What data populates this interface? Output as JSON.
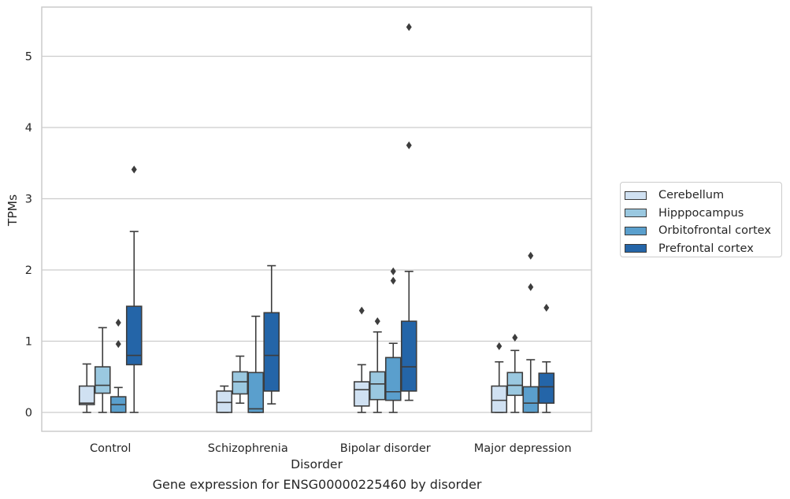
{
  "caption": "Gene expression for ENSG00000225460 by disorder",
  "chart_data": {
    "type": "box",
    "xlabel": "Disorder",
    "ylabel": "TPMs",
    "ylim": [
      -0.27,
      5.7
    ],
    "yticks": [
      0,
      1,
      2,
      3,
      4,
      5
    ],
    "grid": "horizontal",
    "legend_placement": "outside-right",
    "categories": [
      "Control",
      "Schizophrenia",
      "Bipolar disorder",
      "Major depression"
    ],
    "series": [
      {
        "name": "Cerebellum",
        "color": "#d0e1f2",
        "boxes": [
          {
            "whisker_low": 0.0,
            "q1": 0.11,
            "median": 0.13,
            "q3": 0.37,
            "whisker_high": 0.68,
            "outliers": []
          },
          {
            "whisker_low": 0.0,
            "q1": 0.0,
            "median": 0.14,
            "q3": 0.3,
            "whisker_high": 0.37,
            "outliers": []
          },
          {
            "whisker_low": 0.0,
            "q1": 0.09,
            "median": 0.32,
            "q3": 0.43,
            "whisker_high": 0.67,
            "outliers": [
              1.43
            ]
          },
          {
            "whisker_low": 0.0,
            "q1": 0.0,
            "median": 0.17,
            "q3": 0.37,
            "whisker_high": 0.71,
            "outliers": [
              0.93
            ]
          }
        ]
      },
      {
        "name": "Hipppocampus",
        "color": "#9ac8e0",
        "boxes": [
          {
            "whisker_low": 0.0,
            "q1": 0.27,
            "median": 0.38,
            "q3": 0.64,
            "whisker_high": 1.19,
            "outliers": []
          },
          {
            "whisker_low": 0.13,
            "q1": 0.26,
            "median": 0.43,
            "q3": 0.57,
            "whisker_high": 0.79,
            "outliers": []
          },
          {
            "whisker_low": 0.0,
            "q1": 0.18,
            "median": 0.4,
            "q3": 0.57,
            "whisker_high": 1.13,
            "outliers": [
              1.28
            ]
          },
          {
            "whisker_low": 0.0,
            "q1": 0.24,
            "median": 0.38,
            "q3": 0.56,
            "whisker_high": 0.87,
            "outliers": [
              1.05
            ]
          }
        ]
      },
      {
        "name": "Orbitofrontal cortex",
        "color": "#5a9fcd",
        "boxes": [
          {
            "whisker_low": 0.0,
            "q1": 0.0,
            "median": 0.11,
            "q3": 0.22,
            "whisker_high": 0.35,
            "outliers": [
              0.96,
              1.26
            ]
          },
          {
            "whisker_low": 0.0,
            "q1": 0.0,
            "median": 0.05,
            "q3": 0.56,
            "whisker_high": 1.35,
            "outliers": []
          },
          {
            "whisker_low": 0.0,
            "q1": 0.17,
            "median": 0.29,
            "q3": 0.77,
            "whisker_high": 0.97,
            "outliers": [
              1.85,
              1.98
            ]
          },
          {
            "whisker_low": 0.0,
            "q1": 0.0,
            "median": 0.13,
            "q3": 0.36,
            "whisker_high": 0.74,
            "outliers": [
              1.76,
              2.2
            ]
          }
        ]
      },
      {
        "name": "Prefrontal cortex",
        "color": "#2465a8",
        "boxes": [
          {
            "whisker_low": 0.0,
            "q1": 0.67,
            "median": 0.8,
            "q3": 1.49,
            "whisker_high": 2.54,
            "outliers": [
              3.41
            ]
          },
          {
            "whisker_low": 0.12,
            "q1": 0.3,
            "median": 0.8,
            "q3": 1.4,
            "whisker_high": 2.06,
            "outliers": []
          },
          {
            "whisker_low": 0.17,
            "q1": 0.3,
            "median": 0.64,
            "q3": 1.28,
            "whisker_high": 1.98,
            "outliers": [
              3.75,
              5.41
            ]
          },
          {
            "whisker_low": 0.0,
            "q1": 0.13,
            "median": 0.36,
            "q3": 0.55,
            "whisker_high": 0.71,
            "outliers": [
              1.47
            ]
          }
        ]
      }
    ]
  }
}
